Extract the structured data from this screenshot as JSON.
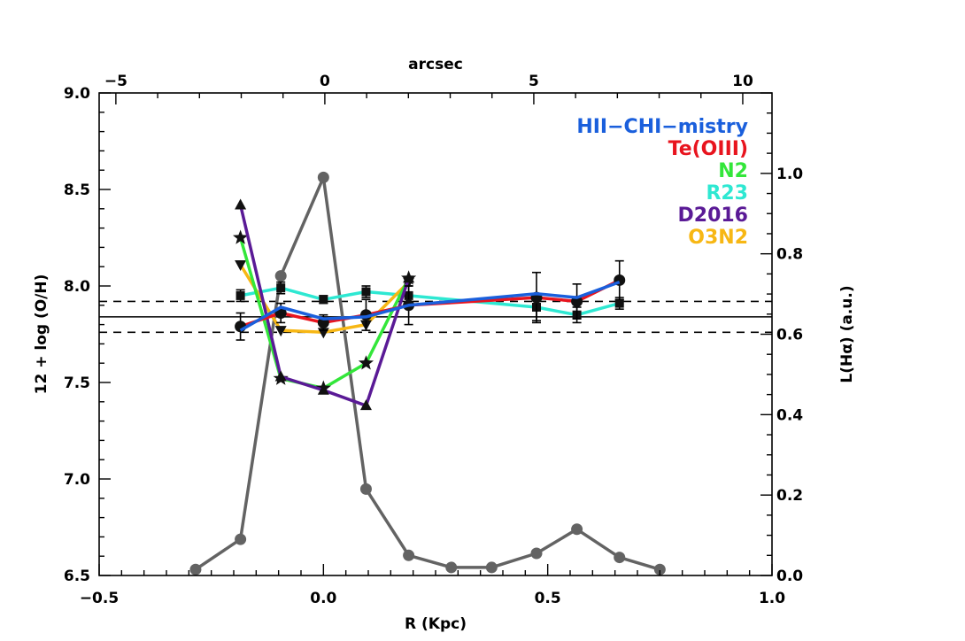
{
  "chart_data": {
    "type": "line",
    "x_axis": {
      "label": "R (Kpc)",
      "range": [
        -0.5,
        1.0
      ],
      "ticks": [
        -0.5,
        0.0,
        0.5,
        1.0
      ],
      "tick_labels": [
        "−0.5",
        "0.0",
        "0.5",
        "1.0"
      ]
    },
    "top_axis": {
      "label": "arcsec",
      "range": [
        -5.4,
        10.7
      ],
      "ticks": [
        -5,
        0,
        5,
        10
      ],
      "tick_labels": [
        "−5",
        "0",
        "5",
        "10"
      ]
    },
    "y_axis": {
      "label": "12 + log (O/H)",
      "range": [
        6.5,
        9.0
      ],
      "ticks": [
        6.5,
        7.0,
        7.5,
        8.0,
        8.5,
        9.0
      ],
      "tick_labels": [
        "6.5",
        "7.0",
        "7.5",
        "8.0",
        "8.5",
        "9.0"
      ]
    },
    "y2_axis": {
      "label": "L(Hα) (a.u.)",
      "range": [
        0.0,
        1.2
      ],
      "ticks": [
        0.0,
        0.2,
        0.4,
        0.6,
        0.8,
        1.0
      ],
      "tick_labels": [
        "0.0",
        "0.2",
        "0.4",
        "0.6",
        "0.8",
        "1.0"
      ]
    },
    "reference_lines": {
      "solid": 7.84,
      "dashed": [
        7.76,
        7.92
      ]
    },
    "legend": {
      "position": "top-right",
      "entries": [
        {
          "label": "HII−CHI−mistry",
          "color": "#1a5fdc"
        },
        {
          "label": "Te(OIII)",
          "color": "#e8141e"
        },
        {
          "label": "N2",
          "color": "#33e63a"
        },
        {
          "label": "R23",
          "color": "#2ee8d2"
        },
        {
          "label": "D2016",
          "color": "#5a1a96"
        },
        {
          "label": "O3N2",
          "color": "#f7b714"
        }
      ]
    },
    "series": [
      {
        "name": "HII−CHI−mistry",
        "color": "#1a5fdc",
        "marker": "none",
        "x": [
          -0.185,
          -0.095,
          0.0,
          0.095,
          0.19,
          0.475,
          0.565,
          0.66
        ],
        "y": [
          7.77,
          7.89,
          7.83,
          7.84,
          7.9,
          7.96,
          7.94,
          8.02
        ]
      },
      {
        "name": "Te(OIII)",
        "color": "#e8141e",
        "marker": "circle",
        "x": [
          -0.185,
          -0.095,
          0.0,
          0.095,
          0.19,
          0.475,
          0.565,
          0.66
        ],
        "y": [
          7.79,
          7.86,
          7.81,
          7.85,
          7.9,
          7.94,
          7.92,
          8.03
        ],
        "yerr": [
          0.07,
          0.05,
          0.04,
          0.08,
          0.1,
          0.13,
          0.09,
          0.1
        ]
      },
      {
        "name": "N2",
        "color": "#33e63a",
        "marker": "star",
        "x": [
          -0.185,
          -0.095,
          0.0,
          0.095,
          0.19
        ],
        "y": [
          8.25,
          7.52,
          7.47,
          7.6,
          8.04
        ]
      },
      {
        "name": "R23",
        "color": "#2ee8d2",
        "marker": "square",
        "x": [
          -0.185,
          -0.095,
          0.0,
          0.095,
          0.19,
          0.475,
          0.565,
          0.66
        ],
        "y": [
          7.95,
          7.99,
          7.93,
          7.97,
          7.95,
          7.89,
          7.85,
          7.91
        ],
        "yerr": [
          0.03,
          0.03,
          0.02,
          0.03,
          0.05,
          0.07,
          0.04,
          0.03
        ]
      },
      {
        "name": "D2016",
        "color": "#5a1a96",
        "marker": "triangle-up",
        "x": [
          -0.185,
          -0.095,
          0.0,
          0.095,
          0.19
        ],
        "y": [
          8.42,
          7.53,
          7.46,
          7.38,
          8.04
        ]
      },
      {
        "name": "O3N2",
        "color": "#f7b714",
        "marker": "triangle-down",
        "x": [
          -0.185,
          -0.095,
          0.0,
          0.095,
          0.19
        ],
        "y": [
          8.11,
          7.77,
          7.76,
          7.8,
          8.02
        ]
      },
      {
        "name": "",
        "color": "#636363",
        "marker": "circle",
        "axis": "right",
        "x": [
          -0.285,
          -0.185,
          -0.095,
          0.0,
          0.095,
          0.19,
          0.285,
          0.375,
          0.475,
          0.565,
          0.66,
          0.75
        ],
        "y": [
          0.015,
          0.09,
          0.745,
          0.99,
          0.215,
          0.05,
          0.02,
          0.02,
          0.055,
          0.115,
          0.045,
          0.015
        ]
      }
    ]
  }
}
